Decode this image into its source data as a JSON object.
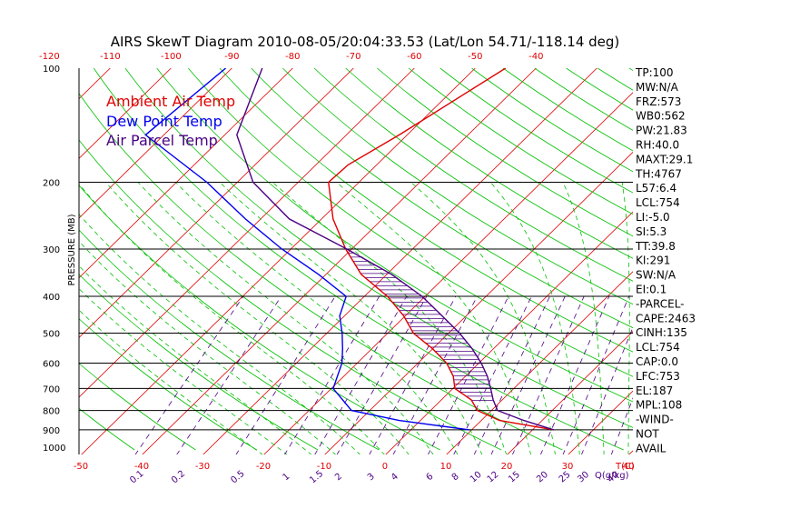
{
  "title": "AIRS SkewT Diagram 2010-08-05/20:04:33.53 (Lat/Lon 54.71/-118.14 deg)",
  "colors": {
    "ambient": "#e00000",
    "dewpoint": "#0000ee",
    "parcel": "#4b0082",
    "isotherm": "#e00000",
    "dry_adiabat": "#00c000",
    "moist_adiabat": "#00c000",
    "mixing_ratio": "#4b0082",
    "top_axis": "#e00000",
    "bottom_axis": "#e00000"
  },
  "chart_data": {
    "type": "line",
    "diagram": "skew-T log-P",
    "ylabel": "PRESSURE (MB)",
    "pressure_levels": [
      100,
      200,
      300,
      400,
      500,
      600,
      700,
      800,
      900,
      1000
    ],
    "pressure_range_mb": [
      100,
      1050
    ],
    "top_temp_ticks": [
      "-120",
      "-110",
      "-100",
      "-90",
      "-80",
      "-70",
      "-60",
      "-50",
      "-40"
    ],
    "bottom_temp_ticks": [
      "-50",
      "-40",
      "-30",
      "-20",
      "-10",
      "0",
      "10",
      "20",
      "30",
      "40"
    ],
    "bottom_temp_unit": "T(C)",
    "mixing_ratio_ticks": [
      "0.1",
      "0.2",
      "0.5",
      "1",
      "1.5",
      "2",
      "3",
      "4",
      "6",
      "8",
      "10",
      "12",
      "15",
      "20",
      "25",
      "30",
      "40"
    ],
    "mixing_ratio_unit": "Q(g/kg)",
    "legend": [
      "Ambient Air Temp",
      "Dew Point Temp",
      "Air Parcel Temp"
    ],
    "series": [
      {
        "name": "Ambient Air Temp",
        "points": [
          {
            "p": 100,
            "t": -45.0
          },
          {
            "p": 150,
            "t": -51.3
          },
          {
            "p": 180,
            "t": -54.7
          },
          {
            "p": 200,
            "t": -55.0
          },
          {
            "p": 250,
            "t": -48.1
          },
          {
            "p": 300,
            "t": -41.0
          },
          {
            "p": 350,
            "t": -34.2
          },
          {
            "p": 400,
            "t": -26.2
          },
          {
            "p": 450,
            "t": -20.3
          },
          {
            "p": 500,
            "t": -15.8
          },
          {
            "p": 550,
            "t": -10.0
          },
          {
            "p": 600,
            "t": -5.3
          },
          {
            "p": 650,
            "t": -2.0
          },
          {
            "p": 700,
            "t": 0.3
          },
          {
            "p": 750,
            "t": 4.9
          },
          {
            "p": 800,
            "t": 7.7
          },
          {
            "p": 850,
            "t": 13.0
          },
          {
            "p": 900,
            "t": 23.5
          }
        ]
      },
      {
        "name": "Dew Point Temp",
        "points": [
          {
            "p": 100,
            "t": -91.0
          },
          {
            "p": 150,
            "t": -93.0
          },
          {
            "p": 200,
            "t": -75.0
          },
          {
            "p": 250,
            "t": -62.5
          },
          {
            "p": 300,
            "t": -51.5
          },
          {
            "p": 350,
            "t": -41.2
          },
          {
            "p": 400,
            "t": -33.0
          },
          {
            "p": 450,
            "t": -30.8
          },
          {
            "p": 500,
            "t": -27.5
          },
          {
            "p": 550,
            "t": -24.8
          },
          {
            "p": 600,
            "t": -22.5
          },
          {
            "p": 700,
            "t": -19.7
          },
          {
            "p": 800,
            "t": -13.0
          },
          {
            "p": 850,
            "t": -3.5
          },
          {
            "p": 900,
            "t": 9.6
          }
        ]
      },
      {
        "name": "Air Parcel Temp",
        "points": [
          {
            "p": 100,
            "t": -85.0
          },
          {
            "p": 150,
            "t": -78.0
          },
          {
            "p": 200,
            "t": -67.4
          },
          {
            "p": 250,
            "t": -55.3
          },
          {
            "p": 300,
            "t": -40.8
          },
          {
            "p": 350,
            "t": -29.2
          },
          {
            "p": 400,
            "t": -20.5
          },
          {
            "p": 450,
            "t": -14.0
          },
          {
            "p": 500,
            "t": -8.2
          },
          {
            "p": 550,
            "t": -3.5
          },
          {
            "p": 600,
            "t": 0.4
          },
          {
            "p": 650,
            "t": 3.6
          },
          {
            "p": 700,
            "t": 6.2
          },
          {
            "p": 750,
            "t": 8.5
          },
          {
            "p": 800,
            "t": 11.0
          },
          {
            "p": 850,
            "t": 17.0
          },
          {
            "p": 900,
            "t": 23.5
          }
        ]
      }
    ],
    "cape_shading": "between Air Parcel Temp and Ambient Air Temp from 753 mb to 187 mb"
  },
  "indices": [
    "TP:100",
    "MW:N/A",
    "FRZ:573",
    "WB0:562",
    "PW:21.83",
    "RH:40.0",
    "MAXT:29.1",
    "TH:4767",
    "L57:6.4",
    "LCL:754",
    "LI:-5.0",
    "SI:5.3",
    "TT:39.8",
    "KI:291",
    "SW:N/A",
    "EI:0.1",
    "-PARCEL-",
    "CAPE:2463",
    "CINH:135",
    "LCL:754",
    "CAP:0.0",
    "LFC:753",
    "EL:187",
    "MPL:108",
    "-WIND-",
    "NOT",
    "AVAIL"
  ]
}
